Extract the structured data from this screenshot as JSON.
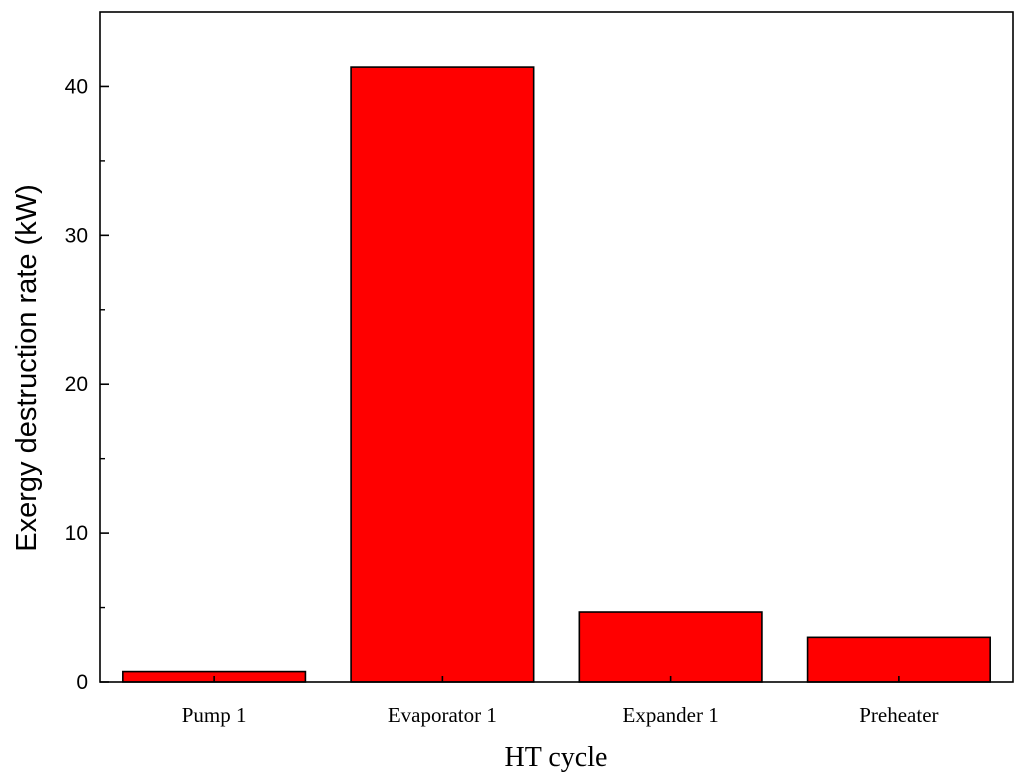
{
  "chart_data": {
    "type": "bar",
    "title": "",
    "xlabel": "HT cycle",
    "ylabel": "Exergy destruction rate (kW)",
    "categories": [
      "Pump 1",
      "Evaporator 1",
      "Expander 1",
      "Preheater"
    ],
    "values": [
      0.7,
      41.3,
      4.7,
      3.0
    ],
    "ylim": [
      0,
      45
    ],
    "yticks": [
      0,
      10,
      20,
      30,
      40
    ],
    "grid": false,
    "legend": "none",
    "bar_color": "#ff0000",
    "bar_edge_color": "#000000"
  }
}
